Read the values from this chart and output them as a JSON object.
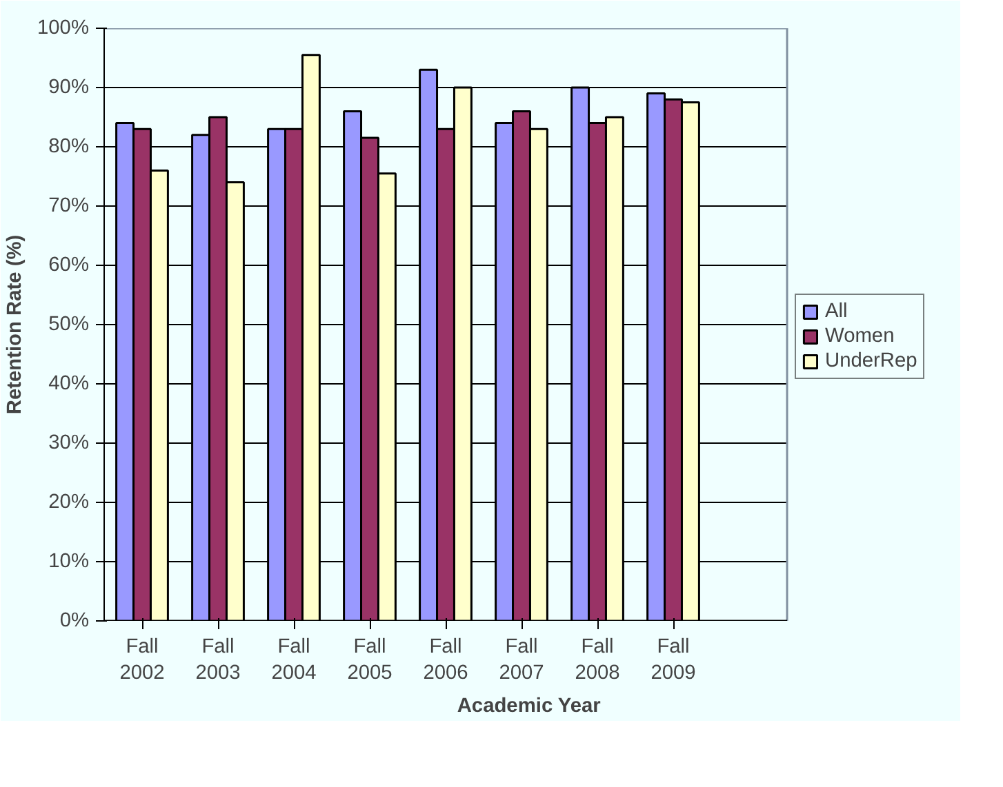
{
  "chart_data": {
    "type": "bar",
    "xlabel": "Academic Year",
    "ylabel": "Retention Rate (%)",
    "categories": [
      "Fall 2002",
      "Fall 2003",
      "Fall 2004",
      "Fall 2005",
      "Fall 2006",
      "Fall 2007",
      "Fall 2008",
      "Fall 2009",
      null
    ],
    "series": [
      {
        "name": "All",
        "color": "#9999ff",
        "values": [
          84,
          82,
          83,
          86,
          93,
          84,
          90,
          89,
          null
        ]
      },
      {
        "name": "Women",
        "color": "#993366",
        "values": [
          83,
          85,
          83,
          81.5,
          83,
          86,
          84,
          88,
          null
        ]
      },
      {
        "name": "UnderRep",
        "color": "#ffffcc",
        "values": [
          76,
          74,
          95.5,
          75.5,
          90,
          83,
          85,
          87.5,
          null
        ]
      }
    ],
    "ylim": [
      0,
      100
    ],
    "yticks": [
      {
        "value": 0,
        "label": "0%"
      },
      {
        "value": 10,
        "label": "10%"
      },
      {
        "value": 20,
        "label": "20%"
      },
      {
        "value": 30,
        "label": "30%"
      },
      {
        "value": 40,
        "label": "40%"
      },
      {
        "value": 50,
        "label": "50%"
      },
      {
        "value": 60,
        "label": "60%"
      },
      {
        "value": 70,
        "label": "70%"
      },
      {
        "value": 80,
        "label": "80%"
      },
      {
        "value": 90,
        "label": "90%"
      },
      {
        "value": 100,
        "label": "100%"
      }
    ],
    "grid": "y",
    "legend": "right"
  }
}
